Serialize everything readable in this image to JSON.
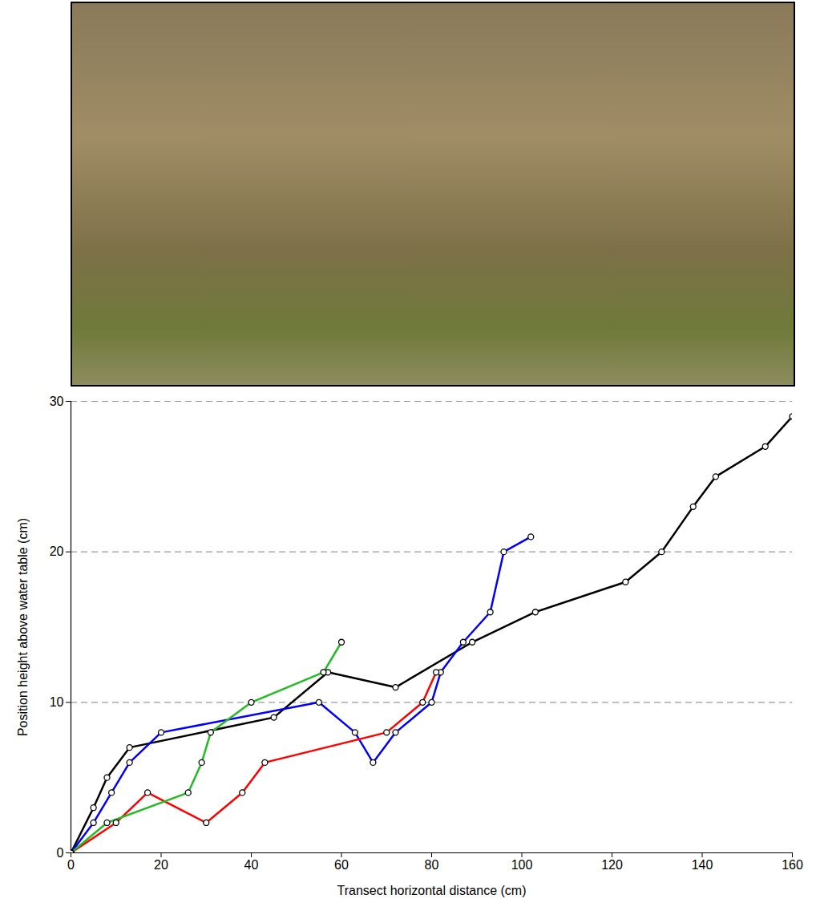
{
  "chart_data": {
    "type": "line",
    "x_label": "Transect horizontal distance (cm)",
    "y_label": "Position height above water table (cm)",
    "xlim": [
      0,
      160
    ],
    "xticks": [
      0,
      20,
      40,
      60,
      80,
      100,
      120,
      140,
      160
    ],
    "ylim": [
      0,
      30
    ],
    "yticks": [
      0,
      10,
      20,
      30
    ],
    "grid": true,
    "marker": "circle",
    "series": [
      {
        "color": "#000000",
        "x": [
          0,
          5,
          8,
          13,
          45,
          57,
          72,
          89,
          103,
          123,
          131,
          138,
          143,
          154,
          160
        ],
        "values": [
          0,
          3,
          5,
          7,
          9,
          12,
          11,
          14,
          16,
          18,
          20,
          23,
          25,
          27,
          29
        ]
      },
      {
        "color": "#0000ff",
        "x": [
          0,
          5,
          9,
          13,
          20,
          55,
          63,
          67,
          72,
          80,
          82,
          87,
          93,
          96,
          102
        ],
        "values": [
          0,
          2,
          4,
          6,
          8,
          10,
          8,
          6,
          8,
          10,
          12,
          14,
          16,
          20,
          21
        ]
      },
      {
        "color": "#ff0000",
        "x": [
          0,
          10,
          17,
          30,
          38,
          43,
          70,
          78,
          81
        ],
        "values": [
          0,
          2,
          4,
          2,
          4,
          6,
          8,
          10,
          12
        ]
      },
      {
        "color": "#22bb22",
        "x": [
          0,
          8,
          26,
          29,
          31,
          40,
          56,
          60
        ],
        "values": [
          0,
          2,
          4,
          6,
          8,
          10,
          12,
          14
        ]
      }
    ]
  }
}
